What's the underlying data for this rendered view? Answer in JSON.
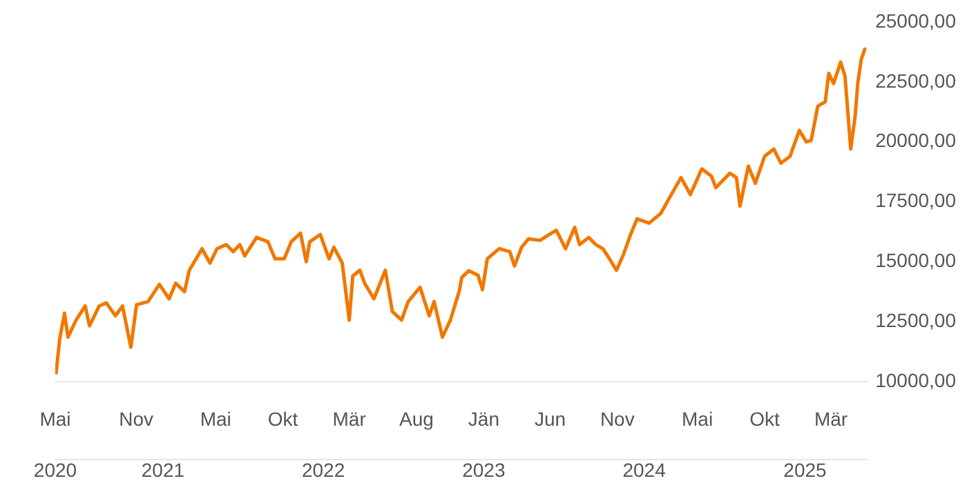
{
  "chart_data": {
    "type": "line",
    "x": [
      "2020-05-03",
      "2020-05-11",
      "2020-05-22",
      "2020-05-30",
      "2020-06-17",
      "2020-07-08",
      "2020-07-18",
      "2020-08-09",
      "2020-08-25",
      "2020-09-15",
      "2020-10-01",
      "2020-10-20",
      "2020-11-02",
      "2020-11-28",
      "2020-12-24",
      "2021-01-15",
      "2021-01-30",
      "2021-02-19",
      "2021-03-02",
      "2021-03-31",
      "2021-04-18",
      "2021-05-04",
      "2021-05-25",
      "2021-06-10",
      "2021-06-25",
      "2021-07-06",
      "2021-08-02",
      "2021-08-28",
      "2021-09-13",
      "2021-10-04",
      "2021-10-20",
      "2021-11-10",
      "2021-11-23",
      "2021-12-01",
      "2021-12-25",
      "2022-01-14",
      "2022-01-25",
      "2022-02-13",
      "2022-03-01",
      "2022-03-09",
      "2022-03-25",
      "2022-04-05",
      "2022-04-26",
      "2022-05-22",
      "2022-06-07",
      "2022-06-28",
      "2022-07-13",
      "2022-08-09",
      "2022-08-30",
      "2022-09-10",
      "2022-09-29",
      "2022-10-17",
      "2022-11-06",
      "2022-11-12",
      "2022-11-28",
      "2022-12-19",
      "2022-12-29",
      "2023-01-09",
      "2023-02-05",
      "2023-03-01",
      "2023-03-12",
      "2023-03-28",
      "2023-04-13",
      "2023-05-09",
      "2023-05-30",
      "2023-06-15",
      "2023-07-06",
      "2023-07-27",
      "2023-08-07",
      "2023-08-28",
      "2023-09-13",
      "2023-09-29",
      "2023-10-14",
      "2023-10-30",
      "2023-11-15",
      "2023-12-01",
      "2023-12-16",
      "2024-01-12",
      "2024-02-08",
      "2024-02-28",
      "2024-03-25",
      "2024-04-15",
      "2024-05-11",
      "2024-06-02",
      "2024-06-12",
      "2024-07-14",
      "2024-07-29",
      "2024-08-06",
      "2024-08-25",
      "2024-09-10",
      "2024-10-01",
      "2024-10-22",
      "2024-11-07",
      "2024-11-28",
      "2024-12-19",
      "2025-01-04",
      "2025-01-15",
      "2025-01-30",
      "2025-02-16",
      "2025-02-24",
      "2025-03-07",
      "2025-03-23",
      "2025-04-02",
      "2025-04-15",
      "2025-04-25",
      "2025-05-01",
      "2025-05-09",
      "2025-05-17"
    ],
    "values": [
      10360,
      11750,
      12850,
      11850,
      12550,
      13150,
      12320,
      13150,
      13280,
      12740,
      13150,
      11430,
      13200,
      13330,
      14050,
      13450,
      14100,
      13750,
      14640,
      15540,
      14940,
      15540,
      15710,
      15420,
      15710,
      15240,
      16010,
      15830,
      15120,
      15120,
      15830,
      16190,
      15000,
      15830,
      16130,
      15120,
      15600,
      14940,
      12560,
      14400,
      14640,
      14100,
      13450,
      14640,
      12920,
      12560,
      13330,
      13930,
      12740,
      13330,
      11850,
      12560,
      13750,
      14340,
      14620,
      14430,
      13830,
      15120,
      15540,
      15420,
      14820,
      15600,
      15950,
      15890,
      16130,
      16310,
      15540,
      16430,
      15710,
      16010,
      15710,
      15540,
      15120,
      14640,
      15300,
      16130,
      16790,
      16610,
      17020,
      17680,
      18510,
      17800,
      18870,
      18570,
      18090,
      18690,
      18510,
      17320,
      18990,
      18270,
      19400,
      19700,
      19110,
      19400,
      20480,
      20000,
      20060,
      21490,
      21670,
      22860,
      22440,
      23330,
      22740,
      19700,
      21070,
      22440,
      23450,
      23870
    ],
    "color": "#f07800",
    "xlim": [
      "2020-05-01",
      "2025-05-22"
    ],
    "xticks": [
      {
        "value": "2020-05-01",
        "label": "Mai"
      },
      {
        "value": "2020-11-01",
        "label": "Nov"
      },
      {
        "value": "2021-05-01",
        "label": "Mai"
      },
      {
        "value": "2021-10-01",
        "label": "Okt"
      },
      {
        "value": "2022-03-01",
        "label": "Mär"
      },
      {
        "value": "2022-08-01",
        "label": "Aug"
      },
      {
        "value": "2023-01-01",
        "label": "Jän"
      },
      {
        "value": "2023-06-01",
        "label": "Jun"
      },
      {
        "value": "2023-11-01",
        "label": "Nov"
      },
      {
        "value": "2024-05-01",
        "label": "Mai"
      },
      {
        "value": "2024-10-01",
        "label": "Okt"
      },
      {
        "value": "2025-03-01",
        "label": "Mär"
      }
    ],
    "x2lim": [
      "2020-05-01",
      "2025-05-22"
    ],
    "x2ticks": [
      {
        "value": "2020-05-01",
        "label": "2020"
      },
      {
        "value": "2021-01-01",
        "label": "2021"
      },
      {
        "value": "2022-01-01",
        "label": "2022"
      },
      {
        "value": "2023-01-01",
        "label": "2023"
      },
      {
        "value": "2024-01-01",
        "label": "2024"
      },
      {
        "value": "2025-01-01",
        "label": "2025"
      }
    ],
    "ylim": [
      10000,
      25000
    ],
    "yticks": [
      {
        "value": 10000,
        "label": "10000,00"
      },
      {
        "value": 12500,
        "label": "12500,00"
      },
      {
        "value": 15000,
        "label": "15000,00"
      },
      {
        "value": 17500,
        "label": "17500,00"
      },
      {
        "value": 20000,
        "label": "20000,00"
      },
      {
        "value": 22500,
        "label": "22500,00"
      },
      {
        "value": 25000,
        "label": "25000,00"
      }
    ],
    "grid": false,
    "legend": false,
    "marker": "none"
  }
}
